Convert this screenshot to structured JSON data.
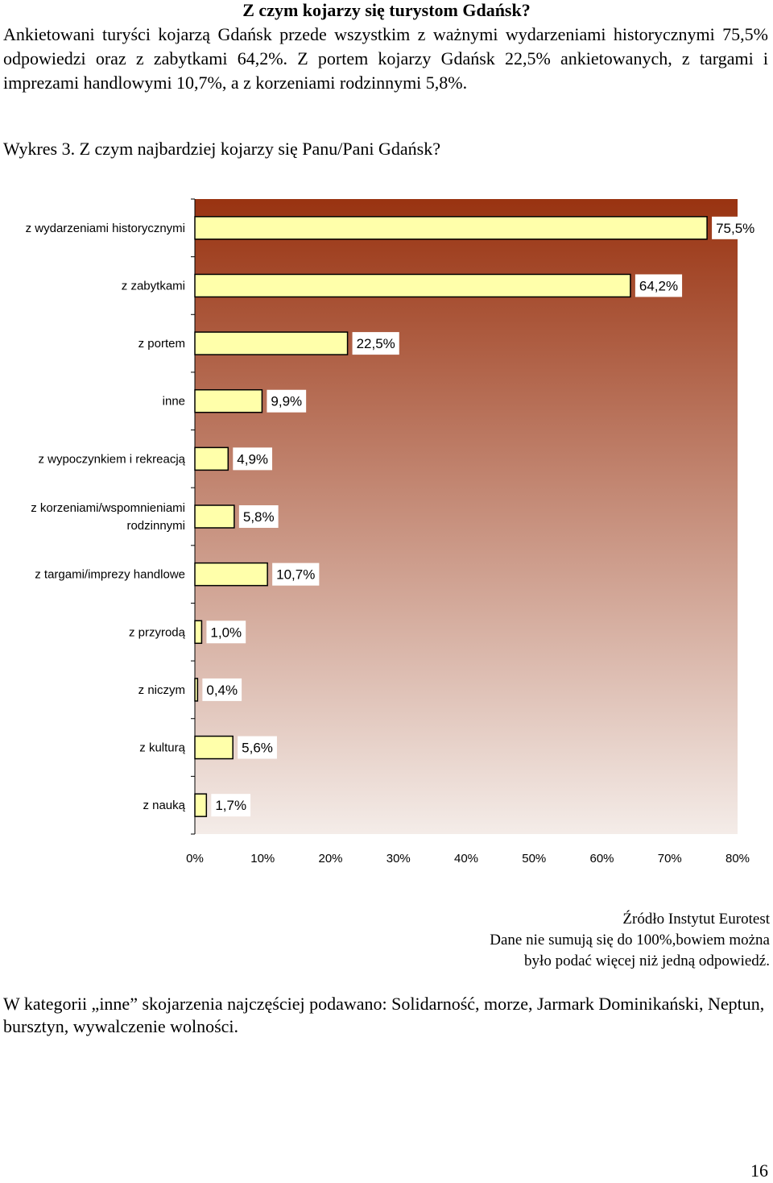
{
  "heading": "Z czym kojarzy się turystom Gdańsk?",
  "intro": "Ankietowani turyści kojarzą Gdańsk przede wszystkim z ważnymi wydarzeniami historycznymi 75,5% odpowiedzi oraz z zabytkami 64,2%. Z portem kojarzy Gdańsk 22,5% ankietowanych, z targami i imprezami handlowymi 10,7%, a z korzeniami rodzinnymi 5,8%.",
  "caption": "Wykres 3.  Z czym najbardziej kojarzy się Panu/Pani Gdańsk?",
  "colors": {
    "bar_fill": "#ffffaa",
    "bar_stroke": "#000000",
    "plot_top": "#993311",
    "plot_bottom": "#f4ece8"
  },
  "chart_data": {
    "type": "bar",
    "orientation": "horizontal",
    "categories": [
      "z wydarzeniami historycznymi",
      "z zabytkami",
      "z portem",
      "inne",
      "z wypoczynkiem i rekreacją",
      "z korzeniami/wspomnieniami rodzinnymi",
      "z targami/imprezy handlowe",
      "z przyrodą",
      "z niczym",
      "z kulturą",
      "z nauką"
    ],
    "values": [
      75.5,
      64.2,
      22.5,
      9.9,
      4.9,
      5.8,
      10.7,
      1.0,
      0.4,
      5.6,
      1.7
    ],
    "value_labels": [
      "75,5%",
      "64,2%",
      "22,5%",
      "9,9%",
      "4,9%",
      "5,8%",
      "10,7%",
      "1,0%",
      "0,4%",
      "5,6%",
      "1,7%"
    ],
    "xticks": [
      "0%",
      "10%",
      "20%",
      "30%",
      "40%",
      "50%",
      "60%",
      "70%",
      "80%"
    ],
    "xlim": [
      0,
      80
    ],
    "grid": false,
    "legend": "none",
    "title": "",
    "xlabel": "",
    "ylabel": ""
  },
  "source": {
    "line1": "Źródło Instytut Eurotest",
    "line2": "Dane nie sumują się do 100%,bowiem można",
    "line3": "było podać więcej niż jedną odpowiedź."
  },
  "footer": "W kategorii „inne” skojarzenia najczęściej podawano:  Solidarność, morze, Jarmark Dominikański, Neptun, bursztyn, wywalczenie wolności.",
  "page_number": "16"
}
